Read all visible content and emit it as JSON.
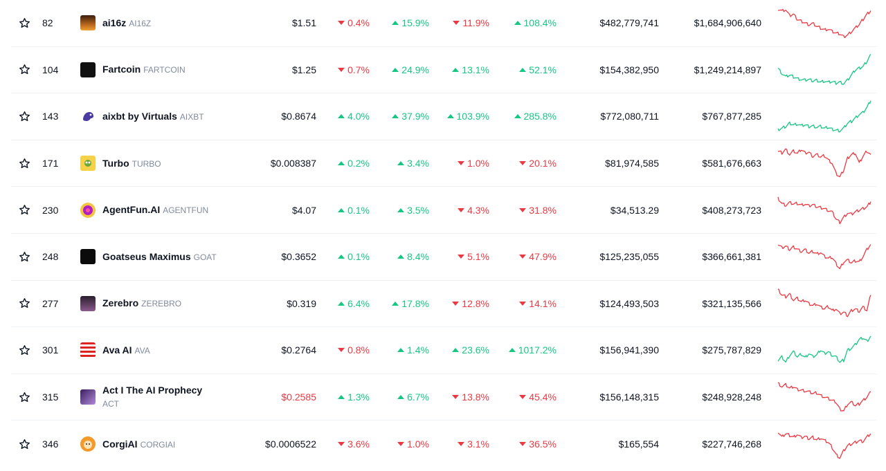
{
  "colors": {
    "up": "#16c784",
    "down": "#ea3943",
    "text": "#0d1421",
    "muted": "#808a9d"
  },
  "rows": [
    {
      "rank": "82",
      "name": "ai16z",
      "symbol": "AI16Z",
      "price": "$1.51",
      "price_red": false,
      "p1": {
        "v": "0.4%",
        "d": "down"
      },
      "p2": {
        "v": "15.9%",
        "d": "up"
      },
      "p3": {
        "v": "11.9%",
        "d": "down"
      },
      "p4": {
        "v": "108.4%",
        "d": "up"
      },
      "col_a": "$482,779,741",
      "col_b": "$1,684,906,640",
      "spark": "down",
      "logo": "ai16z-logo",
      "trend": [
        0.9,
        0.85,
        0.88,
        0.7,
        0.75,
        0.6,
        0.55,
        0.5,
        0.45,
        0.48,
        0.4,
        0.35,
        0.3,
        0.32,
        0.25,
        0.2,
        0.18,
        0.1,
        0.15,
        0.25,
        0.35,
        0.45,
        0.6,
        0.75,
        0.85
      ]
    },
    {
      "rank": "104",
      "name": "Fartcoin",
      "symbol": "FARTCOIN",
      "price": "$1.25",
      "price_red": false,
      "p1": {
        "v": "0.7%",
        "d": "down"
      },
      "p2": {
        "v": "24.9%",
        "d": "up"
      },
      "p3": {
        "v": "13.1%",
        "d": "up"
      },
      "p4": {
        "v": "52.1%",
        "d": "up"
      },
      "col_a": "$154,382,950",
      "col_b": "$1,249,214,897",
      "spark": "up",
      "logo": "fartcoin-logo",
      "trend": [
        0.55,
        0.4,
        0.3,
        0.35,
        0.3,
        0.25,
        0.22,
        0.2,
        0.22,
        0.18,
        0.2,
        0.15,
        0.18,
        0.14,
        0.16,
        0.12,
        0.15,
        0.1,
        0.2,
        0.35,
        0.5,
        0.55,
        0.6,
        0.75,
        0.95
      ]
    },
    {
      "rank": "143",
      "name": "aixbt by Virtuals",
      "symbol": "AIXBT",
      "price": "$0.8674",
      "price_red": false,
      "p1": {
        "v": "4.0%",
        "d": "up"
      },
      "p2": {
        "v": "37.9%",
        "d": "up"
      },
      "p3": {
        "v": "103.9%",
        "d": "up"
      },
      "p4": {
        "v": "285.8%",
        "d": "up"
      },
      "col_a": "$772,080,711",
      "col_b": "$767,877,285",
      "spark": "up",
      "logo": "aixbt-logo",
      "trend": [
        0.1,
        0.15,
        0.2,
        0.3,
        0.25,
        0.28,
        0.22,
        0.25,
        0.2,
        0.22,
        0.18,
        0.2,
        0.15,
        0.18,
        0.12,
        0.1,
        0.08,
        0.15,
        0.3,
        0.35,
        0.45,
        0.55,
        0.6,
        0.75,
        0.95
      ]
    },
    {
      "rank": "171",
      "name": "Turbo",
      "symbol": "TURBO",
      "price": "$0.008387",
      "price_red": false,
      "p1": {
        "v": "0.2%",
        "d": "up"
      },
      "p2": {
        "v": "3.4%",
        "d": "up"
      },
      "p3": {
        "v": "1.0%",
        "d": "down"
      },
      "p4": {
        "v": "20.1%",
        "d": "down"
      },
      "col_a": "$81,974,585",
      "col_b": "$581,676,663",
      "spark": "down",
      "logo": "turbo-logo",
      "trend": [
        0.85,
        0.8,
        0.9,
        0.75,
        0.85,
        0.78,
        0.9,
        0.8,
        0.82,
        0.7,
        0.75,
        0.68,
        0.72,
        0.6,
        0.5,
        0.2,
        0.1,
        0.3,
        0.65,
        0.75,
        0.8,
        0.5,
        0.7,
        0.85,
        0.75
      ]
    },
    {
      "rank": "230",
      "name": "AgentFun.AI",
      "symbol": "AGENTFUN",
      "price": "$4.07",
      "price_red": false,
      "p1": {
        "v": "0.1%",
        "d": "up"
      },
      "p2": {
        "v": "3.5%",
        "d": "up"
      },
      "p3": {
        "v": "4.3%",
        "d": "down"
      },
      "p4": {
        "v": "31.8%",
        "d": "down"
      },
      "col_a": "$34,513.29",
      "col_b": "$408,273,723",
      "spark": "down",
      "logo": "agentfun-logo",
      "trend": [
        0.85,
        0.7,
        0.65,
        0.72,
        0.68,
        0.7,
        0.65,
        0.68,
        0.62,
        0.66,
        0.6,
        0.58,
        0.55,
        0.5,
        0.45,
        0.25,
        0.15,
        0.3,
        0.42,
        0.38,
        0.45,
        0.5,
        0.55,
        0.6,
        0.75
      ]
    },
    {
      "rank": "248",
      "name": "Goatseus Maximus",
      "symbol": "GOAT",
      "price": "$0.3652",
      "price_red": false,
      "p1": {
        "v": "0.1%",
        "d": "up"
      },
      "p2": {
        "v": "8.4%",
        "d": "up"
      },
      "p3": {
        "v": "5.1%",
        "d": "down"
      },
      "p4": {
        "v": "47.9%",
        "d": "down"
      },
      "col_a": "$125,235,055",
      "col_b": "$366,661,381",
      "spark": "down",
      "logo": "goat-logo",
      "trend": [
        0.85,
        0.75,
        0.8,
        0.7,
        0.78,
        0.72,
        0.65,
        0.7,
        0.6,
        0.65,
        0.58,
        0.62,
        0.5,
        0.45,
        0.48,
        0.3,
        0.15,
        0.35,
        0.4,
        0.32,
        0.38,
        0.35,
        0.5,
        0.7,
        0.85
      ]
    },
    {
      "rank": "277",
      "name": "Zerebro",
      "symbol": "ZEREBRO",
      "price": "$0.319",
      "price_red": false,
      "p1": {
        "v": "6.4%",
        "d": "up"
      },
      "p2": {
        "v": "17.8%",
        "d": "up"
      },
      "p3": {
        "v": "12.8%",
        "d": "down"
      },
      "p4": {
        "v": "14.1%",
        "d": "down"
      },
      "col_a": "$124,493,503",
      "col_b": "$321,135,566",
      "spark": "down",
      "logo": "zerebro-logo",
      "trend": [
        0.9,
        0.75,
        0.7,
        0.78,
        0.6,
        0.65,
        0.55,
        0.6,
        0.5,
        0.45,
        0.5,
        0.4,
        0.35,
        0.42,
        0.3,
        0.35,
        0.2,
        0.25,
        0.15,
        0.3,
        0.35,
        0.28,
        0.4,
        0.3,
        0.75
      ]
    },
    {
      "rank": "301",
      "name": "Ava AI",
      "symbol": "AVA",
      "price": "$0.2764",
      "price_red": false,
      "p1": {
        "v": "0.8%",
        "d": "down"
      },
      "p2": {
        "v": "1.4%",
        "d": "up"
      },
      "p3": {
        "v": "23.6%",
        "d": "up"
      },
      "p4": {
        "v": "1017.2%",
        "d": "up"
      },
      "col_a": "$156,941,390",
      "col_b": "$275,787,829",
      "spark": "up",
      "logo": "ava-logo",
      "trend": [
        0.2,
        0.3,
        0.15,
        0.35,
        0.45,
        0.3,
        0.38,
        0.28,
        0.4,
        0.3,
        0.35,
        0.5,
        0.4,
        0.45,
        0.35,
        0.3,
        0.15,
        0.2,
        0.5,
        0.55,
        0.65,
        0.8,
        0.85,
        0.75,
        0.9
      ]
    },
    {
      "rank": "315",
      "name": "Act I The AI Prophecy",
      "symbol": "ACT",
      "price": "$0.2585",
      "price_red": true,
      "p1": {
        "v": "1.3%",
        "d": "up"
      },
      "p2": {
        "v": "6.7%",
        "d": "up"
      },
      "p3": {
        "v": "13.8%",
        "d": "down"
      },
      "p4": {
        "v": "45.4%",
        "d": "down"
      },
      "col_a": "$156,148,315",
      "col_b": "$248,928,248",
      "spark": "down",
      "logo": "act-logo",
      "trend": [
        0.9,
        0.8,
        0.85,
        0.75,
        0.8,
        0.72,
        0.7,
        0.68,
        0.65,
        0.6,
        0.62,
        0.55,
        0.5,
        0.45,
        0.4,
        0.35,
        0.15,
        0.1,
        0.3,
        0.35,
        0.25,
        0.3,
        0.4,
        0.5,
        0.65
      ]
    },
    {
      "rank": "346",
      "name": "CorgiAI",
      "symbol": "CORGIAI",
      "price": "$0.0006522",
      "price_red": false,
      "p1": {
        "v": "3.6%",
        "d": "down"
      },
      "p2": {
        "v": "1.0%",
        "d": "down"
      },
      "p3": {
        "v": "3.1%",
        "d": "down"
      },
      "p4": {
        "v": "36.5%",
        "d": "down"
      },
      "col_a": "$165,554",
      "col_b": "$227,746,268",
      "spark": "down",
      "logo": "corgi-logo",
      "trend": [
        0.85,
        0.7,
        0.8,
        0.75,
        0.7,
        0.78,
        0.68,
        0.72,
        0.65,
        0.7,
        0.62,
        0.68,
        0.6,
        0.55,
        0.4,
        0.2,
        0.1,
        0.3,
        0.45,
        0.5,
        0.55,
        0.6,
        0.58,
        0.7,
        0.8
      ]
    }
  ]
}
